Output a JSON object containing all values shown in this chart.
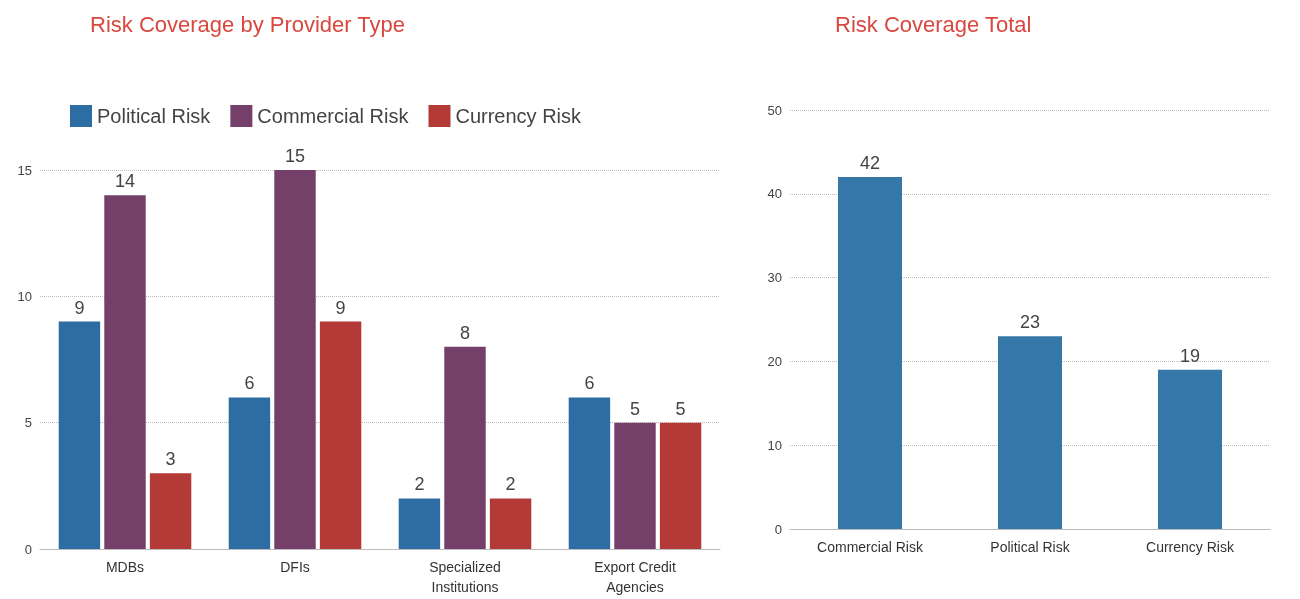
{
  "chart_data": [
    {
      "type": "bar",
      "title": "Risk Coverage by Provider Type",
      "categories": [
        "MDBs",
        "DFIs",
        "Specialized\nInstitutions",
        "Export Credit\nAgencies"
      ],
      "series": [
        {
          "name": "Political Risk",
          "color": "#2e6da4",
          "values": [
            9,
            6,
            2,
            6
          ]
        },
        {
          "name": "Commercial Risk",
          "color": "#743f68",
          "values": [
            14,
            15,
            8,
            5
          ]
        },
        {
          "name": "Currency Risk",
          "color": "#b33a36",
          "values": [
            3,
            9,
            2,
            5
          ]
        }
      ],
      "ylim": [
        0,
        15
      ],
      "yticks": [
        0,
        5,
        10,
        15
      ],
      "grid": "y",
      "legend": "top left",
      "data_labels": true
    },
    {
      "type": "bar",
      "title": "Risk Coverage Total",
      "categories": [
        "Commercial Risk",
        "Political Risk",
        "Currency Risk"
      ],
      "values": [
        42,
        23,
        19
      ],
      "color": "#3577a8",
      "ylim": [
        0,
        50
      ],
      "yticks": [
        0,
        10,
        20,
        30,
        40,
        50
      ],
      "grid": "y",
      "data_labels": true
    }
  ]
}
